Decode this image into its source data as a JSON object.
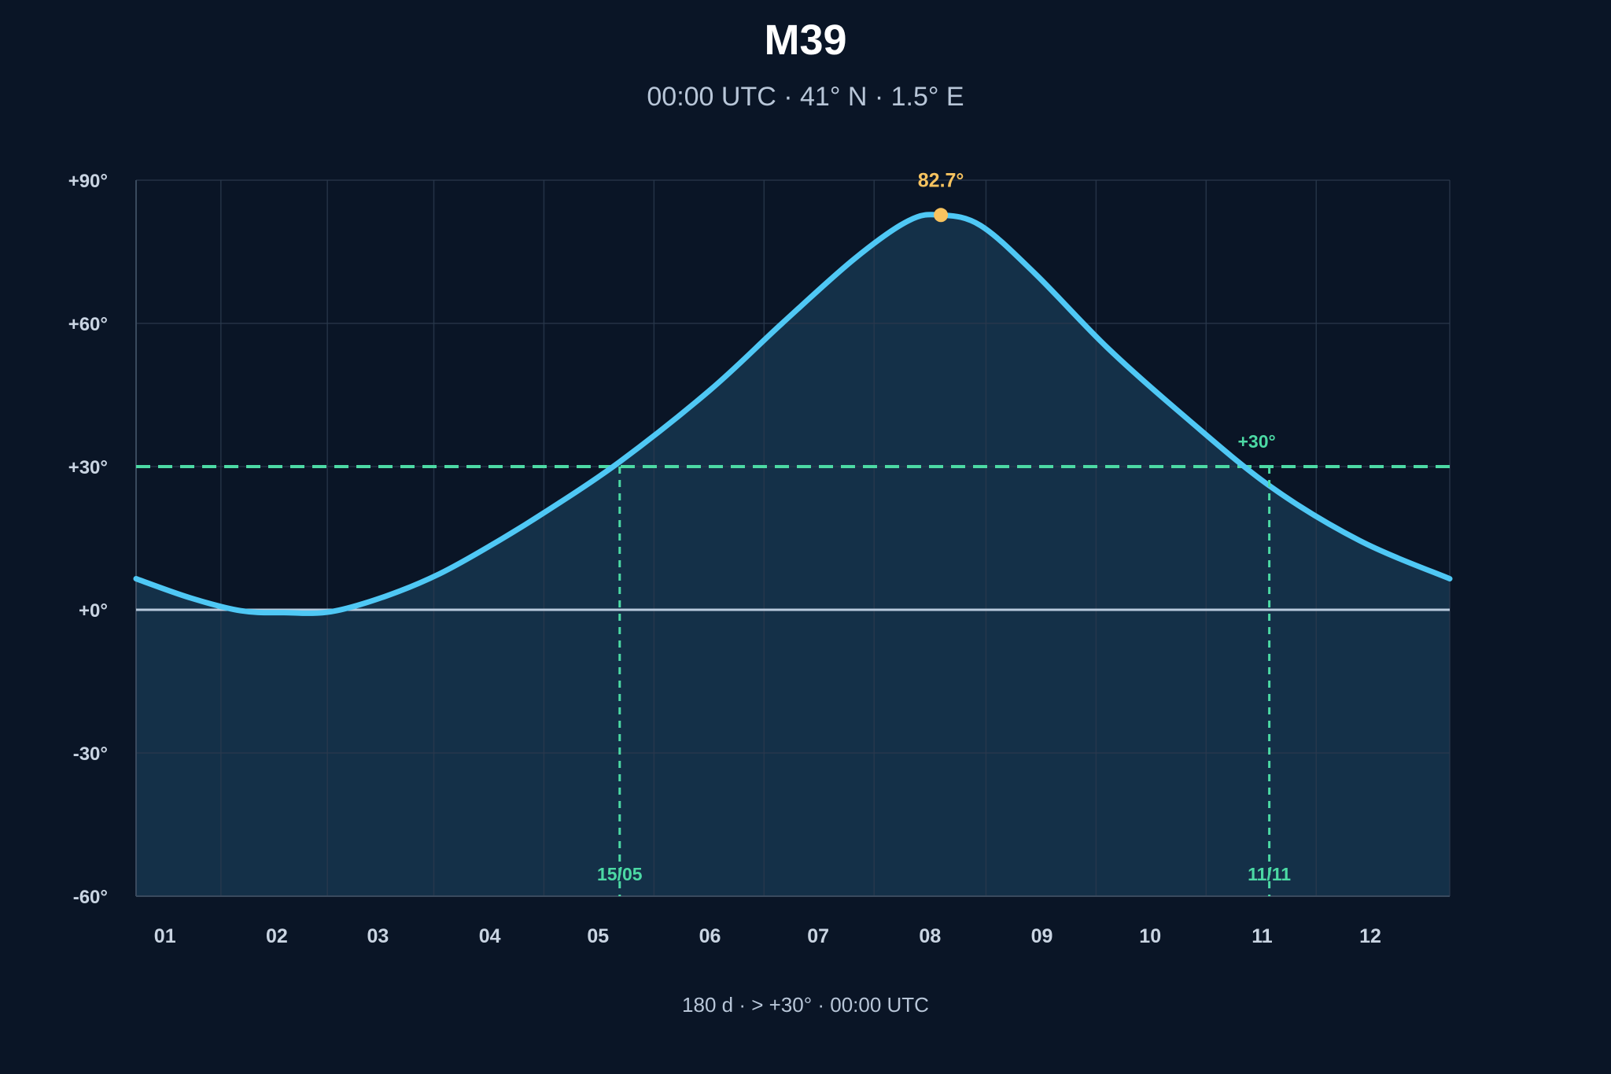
{
  "title": "M39",
  "subtitle": "00:00 UTC · 41° N · 1.5° E",
  "footer": "180 d · > +30° · 00:00 UTC",
  "colors": {
    "background": "#0a1526",
    "curve": "#4fc8f5",
    "fill": "#16334b",
    "threshold": "#4cd9a4",
    "peak": "#f7c35f",
    "horizon": "#b8c9dc",
    "grid": "#2a3a4e"
  },
  "chart_data": {
    "type": "area",
    "title": "M39",
    "subtitle": "00:00 UTC · 41° N · 1.5° E",
    "xlabel": "",
    "ylabel": "",
    "x_unit": "day of year",
    "xlim": [
      1,
      365
    ],
    "ylim": [
      -60,
      90
    ],
    "grid": true,
    "y_ticks": [
      90,
      60,
      30,
      0,
      -30,
      -60
    ],
    "y_tick_labels": [
      "+90°",
      "+60°",
      "+30°",
      "+0°",
      "-30°",
      "-60°"
    ],
    "x_tick_labels": [
      "01",
      "02",
      "03",
      "04",
      "05",
      "06",
      "07",
      "08",
      "09",
      "10",
      "11",
      "12"
    ],
    "x_tick_days": [
      9,
      40,
      68,
      99,
      129,
      160,
      190,
      221,
      252,
      282,
      313,
      343
    ],
    "x": [
      1,
      16,
      30,
      42,
      55,
      70,
      85,
      100,
      115,
      135,
      160,
      180,
      200,
      215,
      224,
      235,
      250,
      270,
      290,
      315,
      340,
      365
    ],
    "y": [
      6.5,
      2.5,
      -0.2,
      -0.6,
      -0.4,
      2.8,
      7.5,
      13.8,
      20.8,
      31.0,
      46.0,
      60.0,
      73.5,
      81.5,
      82.7,
      80.5,
      70.5,
      55.0,
      41.5,
      26.0,
      14.5,
      6.5
    ],
    "threshold": {
      "value": 30,
      "label": "+30°"
    },
    "horizon": 0,
    "crossings": [
      {
        "day": 135,
        "label": "15/05"
      },
      {
        "day": 315,
        "label": "11/11"
      }
    ],
    "peak": {
      "day": 224,
      "value": 82.7,
      "label": "82.7°"
    }
  }
}
